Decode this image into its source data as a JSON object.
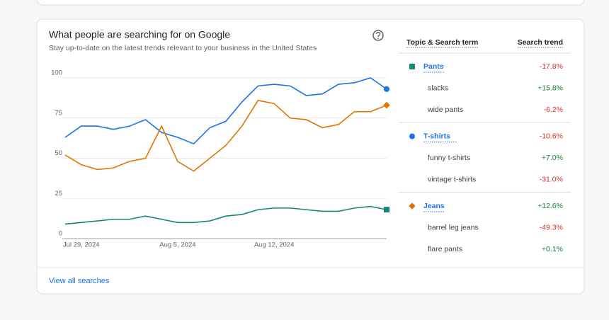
{
  "card": {
    "title": "What people are searching for on Google",
    "subtitle": "Stay up-to-date on the latest trends relevant to your business in the United States",
    "footer_link": "View all searches"
  },
  "chart_data": {
    "type": "line",
    "categories": [
      null,
      "Jul 29, 2024",
      null,
      null,
      null,
      null,
      null,
      "Aug 5, 2024",
      null,
      null,
      null,
      null,
      null,
      "Aug 12, 2024",
      null,
      null,
      null,
      null,
      null,
      null,
      null
    ],
    "series": [
      {
        "name": "Pants",
        "color": "#12877a",
        "marker": "square",
        "values": [
          9,
          10,
          11,
          12,
          12,
          14,
          12,
          10,
          10,
          11,
          14,
          15,
          18,
          19,
          19,
          18,
          17,
          17,
          19,
          20,
          18
        ]
      },
      {
        "name": "T-shirts",
        "color": "#1a73e8",
        "marker": "circle",
        "values": [
          63,
          70,
          70,
          68,
          70,
          74,
          66,
          63,
          59,
          69,
          73,
          85,
          95,
          96,
          95,
          89,
          90,
          96,
          97,
          100,
          93
        ]
      },
      {
        "name": "Jeans",
        "color": "#e37400",
        "marker": "diamond",
        "values": [
          52,
          46,
          43,
          44,
          48,
          50,
          70,
          48,
          42,
          50,
          58,
          70,
          86,
          84,
          75,
          74,
          69,
          71,
          79,
          79,
          83
        ]
      }
    ],
    "ylim": [
      0,
      100
    ],
    "yticks": [
      0,
      25,
      50,
      75,
      100
    ],
    "grid": true
  },
  "table": {
    "headers": [
      "Topic & Search term",
      "Search trend"
    ],
    "groups": [
      {
        "trend": "-17.8%",
        "terms": [
          {
            "term": "slacks",
            "trend": "+15.8%"
          },
          {
            "term": "wide pants",
            "trend": "-6.2%"
          }
        ]
      },
      {
        "trend": "-10.6%",
        "terms": [
          {
            "term": "funny t-shirts",
            "trend": "+7.0%"
          },
          {
            "term": "vintage t-shirts",
            "trend": "-31.0%"
          }
        ]
      },
      {
        "trend": "+12.6%",
        "terms": [
          {
            "term": "barrel leg jeans",
            "trend": "-49.3%"
          },
          {
            "term": "flare pants",
            "trend": "+0.1%"
          }
        ]
      }
    ]
  }
}
